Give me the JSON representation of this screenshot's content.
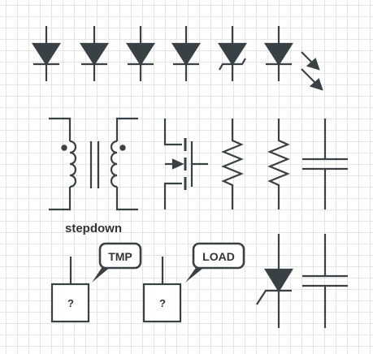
{
  "colors": {
    "stroke": "#3a4145",
    "fill": "#3a4145",
    "bubble_fill": "#ffffff",
    "grid": "#e4e4e4"
  },
  "symbols": {
    "row1": [
      "diode-icon",
      "diode-icon",
      "diode-icon",
      "diode-icon",
      "zener-diode-icon",
      "diode-icon",
      "light-arrows-icon"
    ],
    "row2": [
      "transformer-icon",
      "mosfet-icon",
      "resistor-icon",
      "resistor-icon",
      "capacitor-icon"
    ],
    "row3": [
      "unknown-component-icon",
      "unknown-component-icon",
      "zener-diode-icon",
      "capacitor-icon"
    ]
  },
  "labels": {
    "transformer": "stepdown",
    "callout_1": "TMP",
    "callout_2": "LOAD",
    "box_1": "?",
    "box_2": "?"
  }
}
